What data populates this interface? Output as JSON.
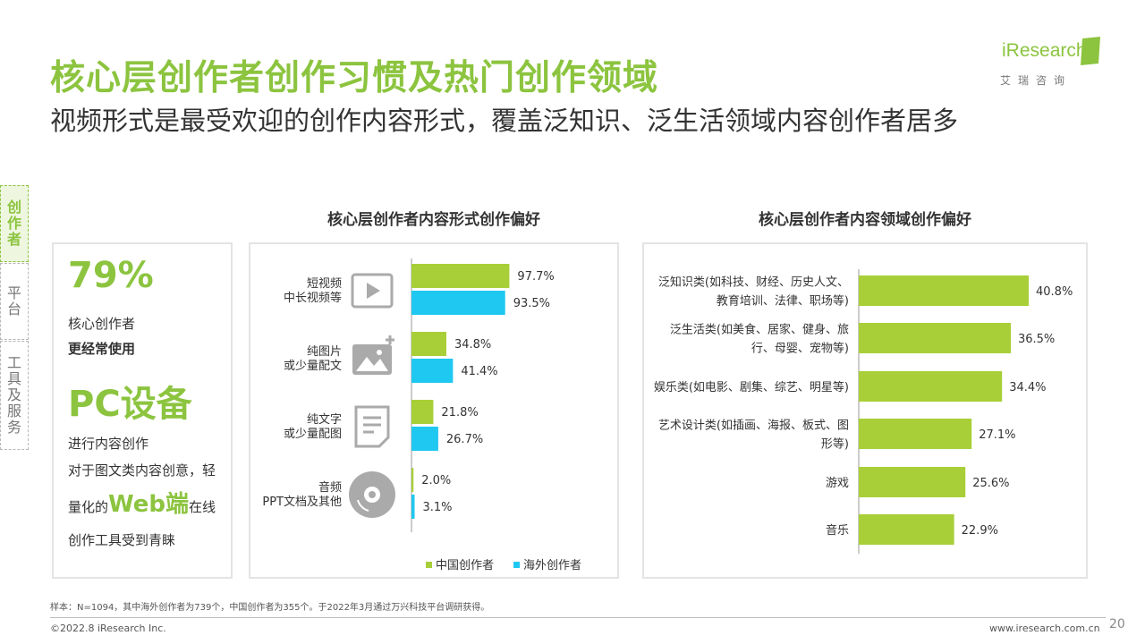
{
  "header": {
    "title": "核心层创作者创作习惯及热门创作领域",
    "subtitle": "视频形式是最受欢迎的创作内容形式，覆盖泛知识、泛生活领域内容创作者居多"
  },
  "logo": {
    "brand": "iResearch",
    "brand_cn": "艾瑞咨询"
  },
  "side_tabs": [
    {
      "label": "创作者",
      "active": true
    },
    {
      "label": "平台",
      "active": false
    },
    {
      "label": "工具及服务",
      "active": false
    }
  ],
  "left_panel": {
    "big_percent": "79%",
    "line1": "核心创作者",
    "line2": "更经常使用",
    "device": "PC设备",
    "line3": "进行内容创作",
    "line4": "对于图文类内容创意，轻",
    "line5_pre": "量化的",
    "line5_web": "Web端",
    "line5_post": "在线",
    "line6": "创作工具受到青睐"
  },
  "chart_data": [
    {
      "type": "bar",
      "title": "核心层创作者内容形式创作偏好",
      "orientation": "horizontal",
      "categories": [
        [
          "短视频",
          "中长视频等"
        ],
        [
          "纯图片",
          "或少量配文"
        ],
        [
          "纯文字",
          "或少量配图"
        ],
        [
          "音频",
          "PPT文档及其他"
        ]
      ],
      "icons": [
        "video-play-icon",
        "image-icon",
        "document-icon",
        "audio-disc-icon"
      ],
      "series": [
        {
          "name": "中国创作者",
          "color": "#a8cf38",
          "values": [
            97.7,
            34.8,
            21.8,
            2.0
          ],
          "labels": [
            "97.7%",
            "34.8%",
            "21.8%",
            "2.0%"
          ]
        },
        {
          "name": "海外创作者",
          "color": "#1fc8f0",
          "values": [
            93.5,
            41.4,
            26.7,
            3.1
          ],
          "labels": [
            "93.5%",
            "41.4%",
            "26.7%",
            "3.1%"
          ]
        }
      ],
      "xlim": [
        0,
        100
      ],
      "grid": false,
      "legend": "bottom"
    },
    {
      "type": "bar",
      "title": "核心层创作者内容领域创作偏好",
      "orientation": "horizontal",
      "categories": [
        [
          "泛知识类(如科技、财经、历史人文、",
          "教育培训、法律、职场等)"
        ],
        [
          "泛生活类(如美食、居家、健身、旅",
          "行、母婴、宠物等)"
        ],
        [
          "娱乐类(如电影、剧集、综艺、明星等)"
        ],
        [
          "艺术设计类(如插画、海报、板式、图",
          "形等)"
        ],
        [
          "游戏"
        ],
        [
          "音乐"
        ]
      ],
      "series": [
        {
          "color": "#a8cf38",
          "values": [
            40.8,
            36.5,
            34.4,
            27.1,
            25.6,
            22.9
          ],
          "labels": [
            "40.8%",
            "36.5%",
            "34.4%",
            "27.1%",
            "25.6%",
            "22.9%"
          ]
        }
      ],
      "xlim": [
        0,
        50
      ],
      "grid": false,
      "legend": "none"
    }
  ],
  "footer": {
    "footnote": "样本：N=1094，其中海外创作者为739个，中国创作者为355个。于2022年3月通过万兴科技平台调研获得。",
    "copyright": "©2022.8 iResearch Inc.",
    "website": "www.iresearch.com.cn",
    "page_number": "20"
  }
}
